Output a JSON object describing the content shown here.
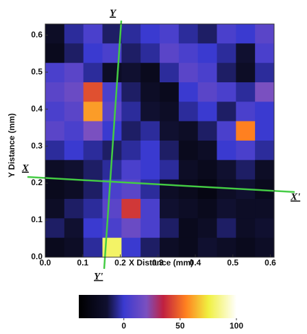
{
  "chart_data": {
    "type": "heatmap",
    "xlabel": "X Distance (mm)",
    "ylabel": "Y Distance (mm)",
    "xlim": [
      0,
      0.61
    ],
    "ylim": [
      0,
      0.63
    ],
    "xticks": [
      {
        "value": 0,
        "label": "0.0"
      },
      0.1,
      0.2,
      0.3,
      0.4,
      0.5,
      0.6
    ],
    "yticks": [
      {
        "value": 0,
        "label": "0.0"
      },
      0.1,
      0.2,
      0.3,
      0.4,
      0.5,
      0.6
    ],
    "z": [
      [
        -20,
        -5,
        5,
        -10,
        -5,
        0,
        5,
        -5,
        -10,
        5,
        0,
        10
      ],
      [
        -25,
        -10,
        0,
        5,
        -10,
        -5,
        10,
        5,
        0,
        -5,
        -15,
        5
      ],
      [
        5,
        10,
        -5,
        -20,
        -15,
        -25,
        -5,
        10,
        5,
        -10,
        -20,
        -5
      ],
      [
        10,
        15,
        45,
        5,
        -10,
        -20,
        -25,
        0,
        10,
        5,
        -5,
        20
      ],
      [
        5,
        10,
        60,
        10,
        -5,
        -15,
        -20,
        -5,
        0,
        -10,
        5,
        0
      ],
      [
        10,
        5,
        20,
        0,
        -10,
        -5,
        -15,
        -20,
        -10,
        5,
        55,
        0
      ],
      [
        -5,
        0,
        -5,
        -10,
        -5,
        0,
        -10,
        -25,
        -20,
        0,
        5,
        -5
      ],
      [
        -20,
        -15,
        -10,
        -5,
        5,
        0,
        -5,
        -20,
        -25,
        -15,
        -10,
        -20
      ],
      [
        -25,
        -20,
        -10,
        5,
        10,
        -5,
        -20,
        -25,
        -30,
        -20,
        -15,
        -25
      ],
      [
        -20,
        -10,
        -5,
        10,
        40,
        5,
        -15,
        -20,
        -25,
        -15,
        -20,
        -20
      ],
      [
        -10,
        -15,
        0,
        5,
        15,
        5,
        -10,
        -25,
        -20,
        -10,
        -20,
        -15
      ],
      [
        -25,
        -20,
        -5,
        80,
        0,
        -10,
        -20,
        -25,
        -15,
        -20,
        -25,
        -20
      ]
    ],
    "colormap": [
      {
        "value": -40,
        "color": "#000000"
      },
      {
        "value": -15,
        "color": "#101030"
      },
      {
        "value": 0,
        "color": "#3a3ad0"
      },
      {
        "value": 20,
        "color": "#7a50c0"
      },
      {
        "value": 35,
        "color": "#c02040"
      },
      {
        "value": 55,
        "color": "#ff8020"
      },
      {
        "value": 75,
        "color": "#f0f040"
      },
      {
        "value": 100,
        "color": "#ffffff"
      }
    ],
    "colorbar_lim": [
      -40,
      100
    ],
    "colorbar_ticks": [
      0,
      50,
      100
    ],
    "annotations": [
      "Y",
      "Y'",
      "X",
      "X'"
    ]
  }
}
